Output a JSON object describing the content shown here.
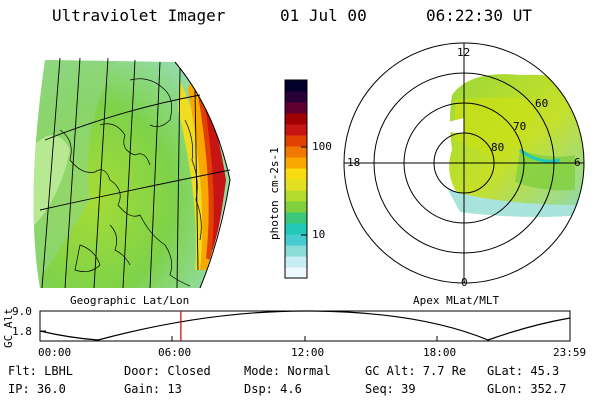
{
  "header": {
    "title": "Ultraviolet Imager",
    "date": "01 Jul 00",
    "time": "06:22:30 UT"
  },
  "colorbar": {
    "label": "photon cm-2s-1",
    "ticks": [
      "100",
      "10"
    ],
    "colors": [
      "#eef8ff",
      "#c8ecf4",
      "#8adcd8",
      "#46ccd0",
      "#22c8b8",
      "#3cc878",
      "#80d040",
      "#b4dc2c",
      "#e2e020",
      "#f8dc10",
      "#f8a800",
      "#f07800",
      "#e04000",
      "#c81414",
      "#a00000",
      "#600030",
      "#280038",
      "#000028"
    ]
  },
  "geo_map": {
    "caption": "Geographic Lat/Lon"
  },
  "polar_map": {
    "caption": "Apex MLat/MLT",
    "mlt_labels": {
      "top": "12",
      "left": "18",
      "right": "6",
      "bottom": "0"
    },
    "lat_labels": [
      "60",
      "70",
      "80"
    ]
  },
  "timeline": {
    "ylabel": "GC Alt",
    "yticks": [
      "9.0",
      "1.8"
    ],
    "xticks": [
      "00:00",
      "06:00",
      "12:00",
      "18:00",
      "23:59"
    ],
    "cursor_hours": 6.375,
    "line_color": "#c80000"
  },
  "info": {
    "flt": "Flt: LBHL",
    "ip": "IP: 36.0",
    "door": "Door: Closed",
    "gain": "Gain: 13",
    "mode": "Mode: Normal",
    "dsp": "Dsp:    4.6",
    "gcalt": "GC Alt: 7.7 Re",
    "seq": "Seq: 39",
    "glat": "GLat:  45.3",
    "glon": "GLon: 352.7"
  }
}
